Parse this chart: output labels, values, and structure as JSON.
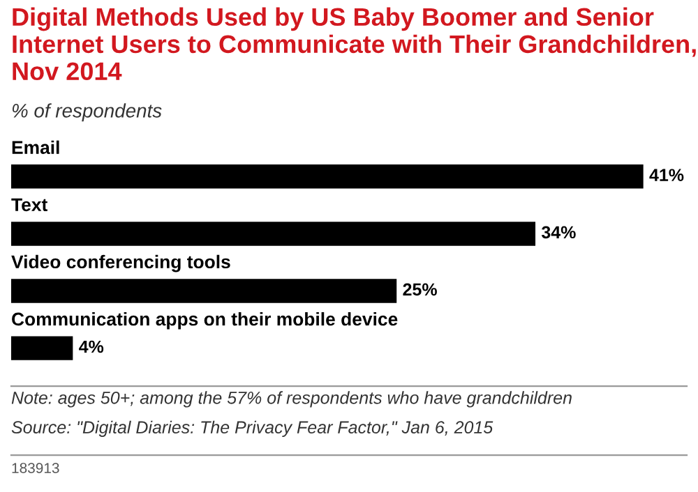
{
  "chart_data": {
    "type": "bar",
    "orientation": "horizontal",
    "title": "Digital Methods Used by US Baby Boomer and Senior Internet Users to Communicate with Their Grandchildren, Nov 2014",
    "subtitle": "% of respondents",
    "categories": [
      "Email",
      "Text",
      "Video conferencing tools",
      "Communication apps on their mobile device"
    ],
    "values": [
      41,
      34,
      25,
      4
    ],
    "color": "#000000",
    "value_labels": [
      "41%",
      "34%",
      "25%",
      "4%"
    ],
    "annotations": [
      "Note: ages 50+; among the 57% of respondents who have grandchildren",
      "Source: \"Digital Diaries: The Privacy Fear Factor,\" Jan 6, 2015",
      "183913"
    ],
    "legend": false
  }
}
